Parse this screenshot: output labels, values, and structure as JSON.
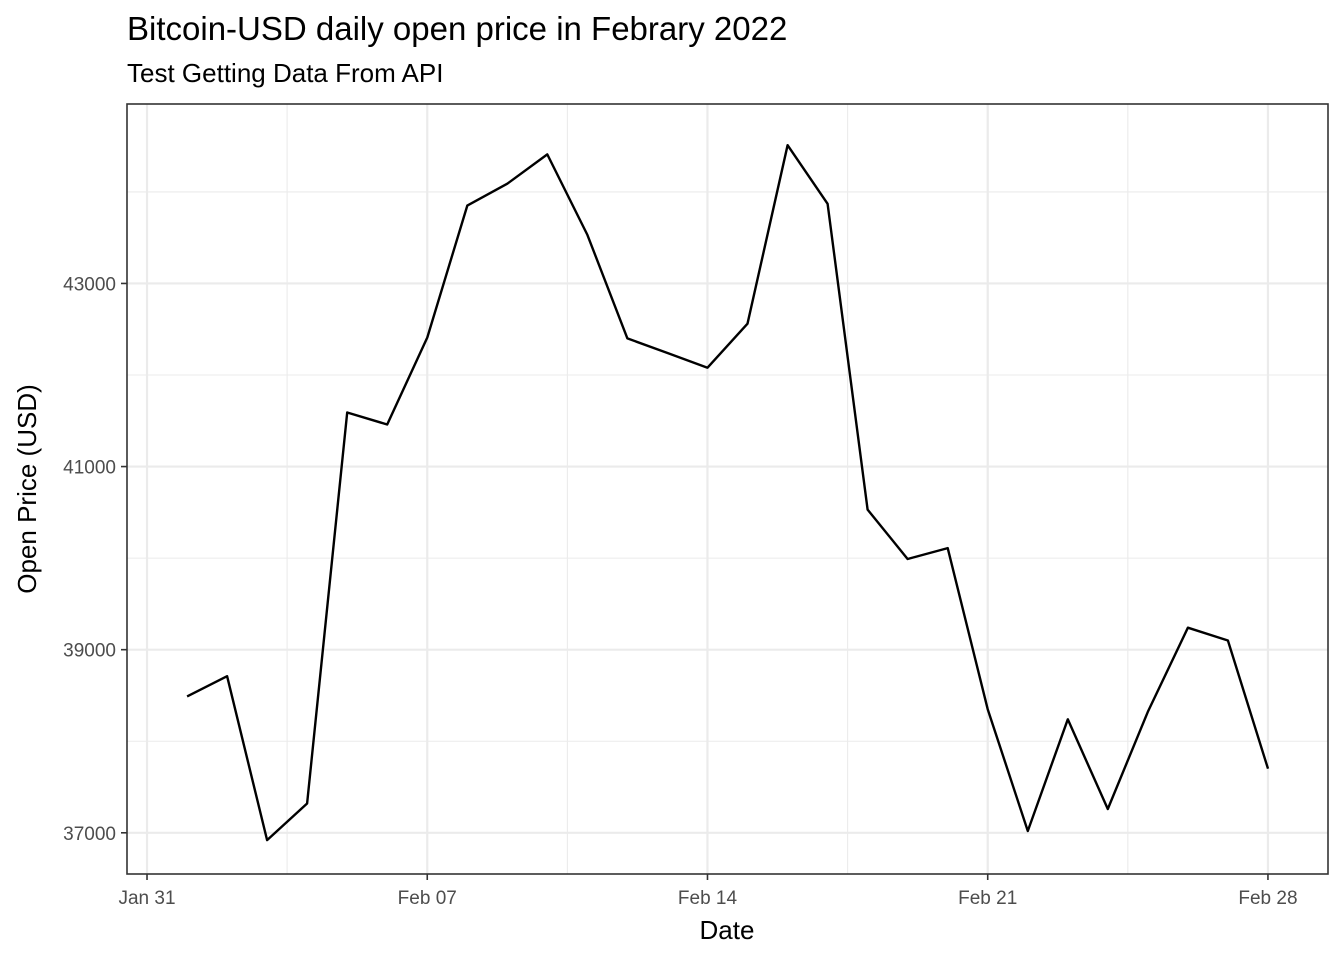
{
  "chart_data": {
    "type": "line",
    "title": "Bitcoin-USD daily open price in Febrary 2022",
    "subtitle": "Test Getting Data From API",
    "xlabel": "Date",
    "ylabel": "Open Price (USD)",
    "x": [
      "2022-02-01",
      "2022-02-02",
      "2022-02-03",
      "2022-02-04",
      "2022-02-05",
      "2022-02-06",
      "2022-02-07",
      "2022-02-08",
      "2022-02-09",
      "2022-02-10",
      "2022-02-11",
      "2022-02-12",
      "2022-02-13",
      "2022-02-14",
      "2022-02-15",
      "2022-02-16",
      "2022-02-17",
      "2022-02-18",
      "2022-02-19",
      "2022-02-20",
      "2022-02-21",
      "2022-02-22",
      "2022-02-23",
      "2022-02-24",
      "2022-02-25",
      "2022-02-26",
      "2022-02-27",
      "2022-02-28"
    ],
    "series": [
      {
        "values": [
          38490,
          38710,
          36920,
          37320,
          41590,
          41460,
          42410,
          43850,
          44090,
          44410,
          43530,
          42400,
          42240,
          42080,
          42560,
          44510,
          43870,
          40530,
          39990,
          40110,
          38350,
          37020,
          38240,
          37260,
          38320,
          39240,
          39100,
          37700
        ]
      }
    ],
    "xlim": [
      "2022-01-30 12:00",
      "2022-03-01 12:00"
    ],
    "ylim": [
      36550,
      44960
    ],
    "x_ticks": [
      {
        "date": "2022-01-31",
        "label": "Jan 31"
      },
      {
        "date": "2022-02-07",
        "label": "Feb 07"
      },
      {
        "date": "2022-02-14",
        "label": "Feb 14"
      },
      {
        "date": "2022-02-21",
        "label": "Feb 21"
      },
      {
        "date": "2022-02-28",
        "label": "Feb 28"
      }
    ],
    "x_minor_ticks": [
      "2022-02-03 12:00",
      "2022-02-10 12:00",
      "2022-02-17 12:00",
      "2022-02-24 12:00"
    ],
    "y_ticks": [
      37000,
      39000,
      41000,
      43000
    ],
    "y_minor_ticks": [
      38000,
      40000,
      42000,
      44000
    ],
    "grid": true,
    "legend": "none",
    "line_color": "#000000"
  }
}
